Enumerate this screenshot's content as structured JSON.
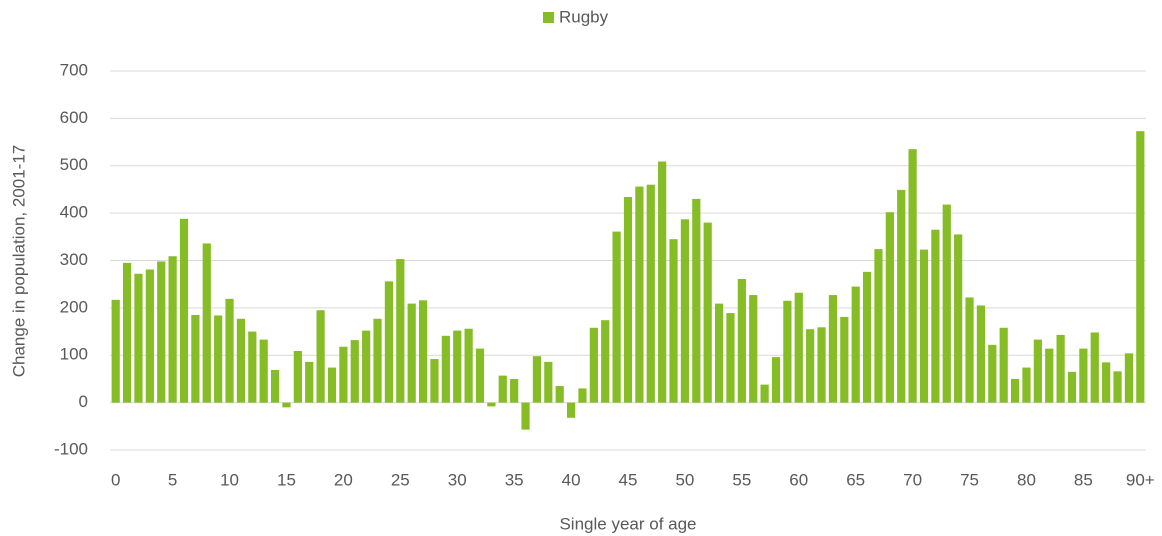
{
  "chart_data": {
    "type": "bar",
    "x_label": "Single year of age",
    "y_label": "Change in population, 2001-17",
    "legend": "top",
    "grid": true,
    "categories": [
      "0",
      null,
      null,
      null,
      null,
      "5",
      null,
      null,
      null,
      null,
      "10",
      null,
      null,
      null,
      null,
      "15",
      null,
      null,
      null,
      null,
      "20",
      null,
      null,
      null,
      null,
      "25",
      null,
      null,
      null,
      null,
      "30",
      null,
      null,
      null,
      null,
      "35",
      null,
      null,
      null,
      null,
      "40",
      null,
      null,
      null,
      null,
      "45",
      null,
      null,
      null,
      null,
      "50",
      null,
      null,
      null,
      null,
      "55",
      null,
      null,
      null,
      null,
      "60",
      null,
      null,
      null,
      null,
      "65",
      null,
      null,
      null,
      null,
      "70",
      null,
      null,
      null,
      null,
      "75",
      null,
      null,
      null,
      null,
      "80",
      null,
      null,
      null,
      null,
      "85",
      null,
      null,
      null,
      null,
      "90+"
    ],
    "series": [
      {
        "name": "Rugby",
        "color": "#86bc25",
        "values": [
          217,
          295,
          272,
          281,
          298,
          309,
          388,
          185,
          336,
          184,
          219,
          177,
          150,
          133,
          69,
          -10,
          109,
          86,
          195,
          74,
          118,
          132,
          152,
          177,
          256,
          303,
          209,
          216,
          92,
          141,
          152,
          156,
          114,
          -8,
          57,
          50,
          -57,
          98,
          86,
          35,
          -32,
          30,
          158,
          174,
          361,
          434,
          456,
          460,
          509,
          345,
          387,
          430,
          380,
          209,
          189,
          261,
          227,
          38,
          96,
          215,
          232,
          155,
          159,
          227,
          181,
          245,
          276,
          324,
          402,
          449,
          535,
          323,
          365,
          418,
          355,
          222,
          205,
          122,
          158,
          50,
          74,
          133,
          114,
          143,
          65,
          114,
          148,
          85,
          66,
          104,
          573
        ]
      }
    ],
    "ylim": [
      -100,
      700
    ],
    "yticks": [
      -100,
      0,
      100,
      200,
      300,
      400,
      500,
      600,
      700
    ]
  }
}
